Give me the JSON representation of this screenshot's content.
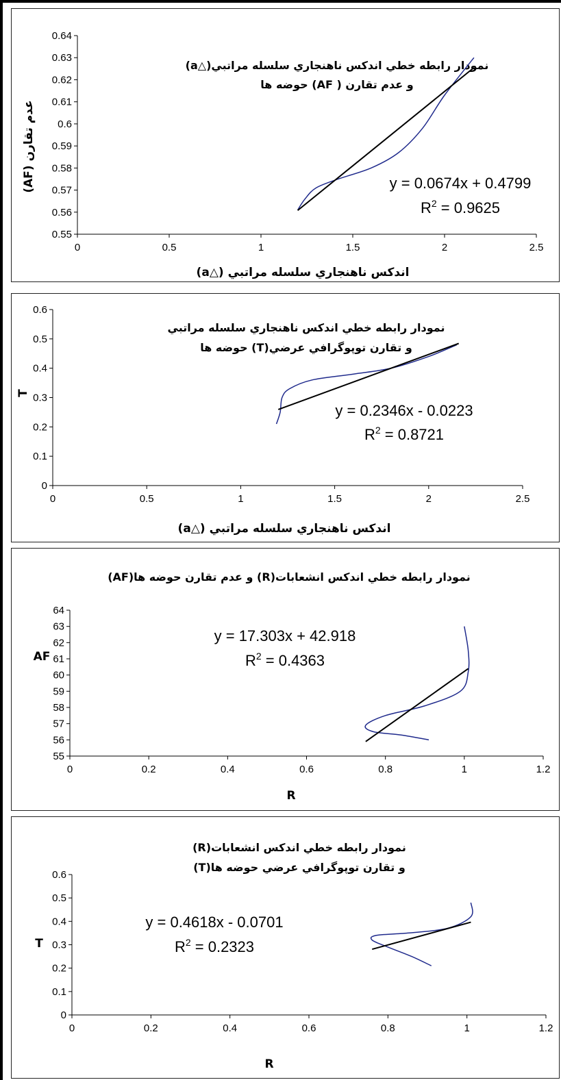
{
  "chart_data": [
    {
      "type": "line",
      "title_lines": [
        "نمودار رابطه خطي اندكس ناهنجاري سلسله مراتبي(△a)",
        "و عدم تقارن ( AF) حوضه ها"
      ],
      "xlabel": "اندكس ناهنجاري سلسله مراتبي (△a)",
      "ylabel": "عدم تقارن (AF)",
      "xlim": [
        0,
        2.5
      ],
      "ylim": [
        0.55,
        0.64
      ],
      "xticks": [
        "0",
        "0.5",
        "1",
        "1.5",
        "2",
        "2.5"
      ],
      "yticks": [
        "0.55",
        "0.56",
        "0.57",
        "0.58",
        "0.59",
        "0.6",
        "0.61",
        "0.62",
        "0.63",
        "0.64"
      ],
      "series": [
        {
          "color": "#1f2a8c",
          "points": [
            [
              1.2,
              0.561
            ],
            [
              1.24,
              0.566
            ],
            [
              1.3,
              0.571
            ],
            [
              1.42,
              0.575
            ],
            [
              1.6,
              0.58
            ],
            [
              1.75,
              0.587
            ],
            [
              1.88,
              0.598
            ],
            [
              2.0,
              0.613
            ],
            [
              2.16,
              0.63
            ]
          ]
        }
      ],
      "trendline": {
        "color": "#000000",
        "slope": 0.0674,
        "intercept": 0.4799,
        "x_range": [
          1.2,
          2.16
        ]
      },
      "equation": "y = 0.0674x + 0.4799",
      "r2_label": "R",
      "r2_sup": "2",
      "r2_value": " = 0.9625",
      "grid": false
    },
    {
      "type": "line",
      "title_lines": [
        "نمودار رابطه خطي اندكس ناهنجاري سلسله مراتبي",
        "و تقارن توپوگرافي عرضي(T) حوضه ها"
      ],
      "xlabel": "اندكس ناهنجاري سلسله مراتبي (△a)",
      "ylabel": "T",
      "xlim": [
        0,
        2.5
      ],
      "ylim": [
        0,
        0.6
      ],
      "xticks": [
        "0",
        "0.5",
        "1",
        "1.5",
        "2",
        "2.5"
      ],
      "yticks": [
        "0",
        "0.1",
        "0.2",
        "0.3",
        "0.4",
        "0.5",
        "0.6"
      ],
      "series": [
        {
          "color": "#1f2a8c",
          "points": [
            [
              1.19,
              0.21
            ],
            [
              1.21,
              0.25
            ],
            [
              1.22,
              0.3
            ],
            [
              1.26,
              0.33
            ],
            [
              1.38,
              0.36
            ],
            [
              1.6,
              0.38
            ],
            [
              1.8,
              0.4
            ],
            [
              2.0,
              0.44
            ],
            [
              2.15,
              0.48
            ]
          ]
        }
      ],
      "trendline": {
        "color": "#000000",
        "slope": 0.2346,
        "intercept": -0.0223,
        "x_range": [
          1.2,
          2.16
        ]
      },
      "equation": "y = 0.2346x - 0.0223",
      "r2_label": "R",
      "r2_sup": "2",
      "r2_value": " = 0.8721",
      "grid": false
    },
    {
      "type": "line",
      "title_lines": [
        "نمودار رابطه خطي اندكس انشعابات(R) و عدم تقارن حوضه ها(AF)"
      ],
      "xlabel": "R",
      "ylabel": "AF",
      "xlim": [
        0,
        1.2
      ],
      "ylim": [
        55,
        64
      ],
      "xticks": [
        "0",
        "0.2",
        "0.4",
        "0.6",
        "0.8",
        "1",
        "1.2"
      ],
      "yticks": [
        "55",
        "56",
        "57",
        "58",
        "59",
        "60",
        "61",
        "62",
        "63",
        "64"
      ],
      "series": [
        {
          "color": "#1f2a8c",
          "points": [
            [
              1.0,
              63.0
            ],
            [
              1.01,
              61.5
            ],
            [
              1.01,
              60.2
            ],
            [
              0.99,
              59.0
            ],
            [
              0.9,
              58.1
            ],
            [
              0.8,
              57.5
            ],
            [
              0.75,
              56.9
            ],
            [
              0.77,
              56.5
            ],
            [
              0.84,
              56.3
            ],
            [
              0.91,
              56.0
            ]
          ]
        }
      ],
      "trendline": {
        "color": "#000000",
        "slope": 17.303,
        "intercept": 42.918,
        "x_range": [
          0.75,
          1.01
        ]
      },
      "equation": "y = 17.303x + 42.918",
      "r2_label": "R",
      "r2_sup": "2",
      "r2_value": " = 0.4363",
      "grid": false
    },
    {
      "type": "line",
      "title_lines": [
        "نمودار رابطه خطي اندكس انشعابات(R)",
        "و تقارن توپوگرافي عرضي حوضه ها(T)"
      ],
      "xlabel": "R",
      "ylabel": "T",
      "xlim": [
        0,
        1.2
      ],
      "ylim": [
        0,
        0.6
      ],
      "xticks": [
        "0",
        "0.2",
        "0.4",
        "0.6",
        "0.8",
        "1",
        "1.2"
      ],
      "yticks": [
        "0",
        "0.1",
        "0.2",
        "0.3",
        "0.4",
        "0.5",
        "0.6"
      ],
      "series": [
        {
          "color": "#1f2a8c",
          "points": [
            [
              1.01,
              0.48
            ],
            [
              1.01,
              0.42
            ],
            [
              0.95,
              0.37
            ],
            [
              0.85,
              0.35
            ],
            [
              0.77,
              0.34
            ],
            [
              0.76,
              0.32
            ],
            [
              0.8,
              0.29
            ],
            [
              0.86,
              0.25
            ],
            [
              0.91,
              0.21
            ]
          ]
        }
      ],
      "trendline": {
        "color": "#000000",
        "slope": 0.4618,
        "intercept": -0.0701,
        "x_range": [
          0.76,
          1.01
        ]
      },
      "equation": "y = 0.4618x - 0.0701",
      "r2_label": "R",
      "r2_sup": "2",
      "r2_value": " = 0.2323",
      "grid": false
    }
  ]
}
